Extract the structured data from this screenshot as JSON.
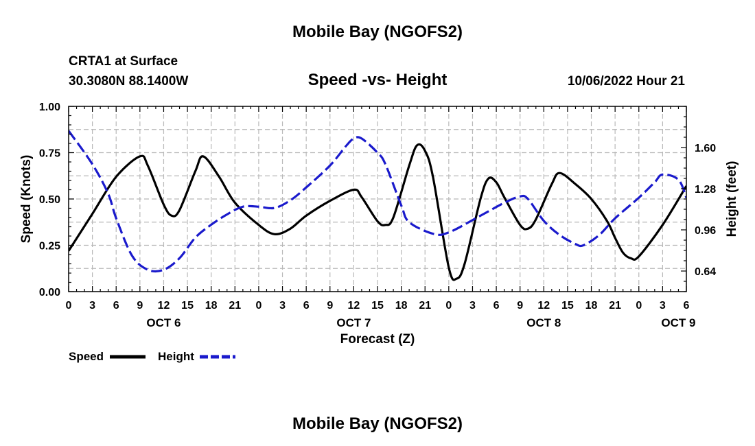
{
  "page": {
    "title_top": "Mobile Bay (NGOFS2)",
    "title_bottom": "Mobile Bay (NGOFS2)",
    "station": "CRTA1 at Surface",
    "coords": "30.3080N  88.1400W",
    "date": "10/06/2022 Hour 21"
  },
  "chart_data": {
    "type": "line",
    "title": "Speed -vs- Height",
    "xlabel": "Forecast (Z)",
    "ylabel": "Speed (Knots)",
    "y2label": "Height (feet)",
    "x_range": [
      0,
      78
    ],
    "ylim": [
      0,
      1
    ],
    "y2lim": [
      0.48,
      1.92
    ],
    "x_ticks": [
      0,
      3,
      6,
      9,
      12,
      15,
      18,
      21,
      24,
      27,
      30,
      33,
      36,
      39,
      42,
      45,
      48,
      51,
      54,
      57,
      60,
      63,
      66,
      69,
      72,
      75,
      78
    ],
    "x_tick_labels": [
      "0",
      "3",
      "6",
      "9",
      "12",
      "15",
      "18",
      "21",
      "0",
      "3",
      "6",
      "9",
      "12",
      "15",
      "18",
      "21",
      "0",
      "3",
      "6",
      "9",
      "12",
      "15",
      "18",
      "21",
      "0",
      "3",
      "6"
    ],
    "day_labels": [
      {
        "x": 12,
        "label": "OCT 6"
      },
      {
        "x": 36,
        "label": "OCT 7"
      },
      {
        "x": 60,
        "label": "OCT 8"
      },
      {
        "x": 77,
        "label": "OCT 9"
      }
    ],
    "y_ticks": [
      0,
      0.25,
      0.5,
      0.75,
      1.0
    ],
    "y_tick_labels": [
      "0.00",
      "0.25",
      "0.50",
      "0.75",
      "1.00"
    ],
    "y2_ticks": [
      0.64,
      0.96,
      1.28,
      1.6
    ],
    "y2_tick_labels": [
      "0.64",
      "0.96",
      "1.28",
      "1.60"
    ],
    "grid": true,
    "series": [
      {
        "name": "Speed",
        "axis": "left",
        "color": "#000000",
        "dash": "solid",
        "points": [
          [
            0,
            0.22
          ],
          [
            3,
            0.42
          ],
          [
            6,
            0.62
          ],
          [
            9,
            0.73
          ],
          [
            10,
            0.68
          ],
          [
            12,
            0.47
          ],
          [
            13,
            0.41
          ],
          [
            14,
            0.44
          ],
          [
            16,
            0.65
          ],
          [
            17,
            0.73
          ],
          [
            19,
            0.62
          ],
          [
            21,
            0.48
          ],
          [
            24,
            0.36
          ],
          [
            26,
            0.31
          ],
          [
            28,
            0.34
          ],
          [
            30,
            0.41
          ],
          [
            33,
            0.49
          ],
          [
            36,
            0.55
          ],
          [
            37,
            0.51
          ],
          [
            39,
            0.38
          ],
          [
            40,
            0.36
          ],
          [
            41,
            0.4
          ],
          [
            43,
            0.68
          ],
          [
            44,
            0.79
          ],
          [
            45,
            0.76
          ],
          [
            46,
            0.62
          ],
          [
            48,
            0.13
          ],
          [
            49,
            0.07
          ],
          [
            50,
            0.15
          ],
          [
            52,
            0.5
          ],
          [
            53,
            0.61
          ],
          [
            54,
            0.59
          ],
          [
            55,
            0.51
          ],
          [
            57,
            0.36
          ],
          [
            58,
            0.34
          ],
          [
            59,
            0.39
          ],
          [
            61,
            0.58
          ],
          [
            62,
            0.64
          ],
          [
            64,
            0.58
          ],
          [
            66,
            0.5
          ],
          [
            68,
            0.38
          ],
          [
            69,
            0.29
          ],
          [
            70,
            0.21
          ],
          [
            71,
            0.18
          ],
          [
            72,
            0.19
          ],
          [
            75,
            0.36
          ],
          [
            78,
            0.57
          ]
        ]
      },
      {
        "name": "Height",
        "axis": "right",
        "color": "#1a1acc",
        "dash": "dashed",
        "points": [
          [
            0,
            1.73
          ],
          [
            3,
            1.47
          ],
          [
            5,
            1.24
          ],
          [
            6,
            1.05
          ],
          [
            8,
            0.76
          ],
          [
            10,
            0.65
          ],
          [
            12,
            0.65
          ],
          [
            14,
            0.74
          ],
          [
            16,
            0.9
          ],
          [
            18,
            1.0
          ],
          [
            20,
            1.08
          ],
          [
            22,
            1.14
          ],
          [
            24,
            1.14
          ],
          [
            26,
            1.13
          ],
          [
            28,
            1.19
          ],
          [
            30,
            1.29
          ],
          [
            33,
            1.46
          ],
          [
            35,
            1.61
          ],
          [
            36,
            1.67
          ],
          [
            37,
            1.67
          ],
          [
            39,
            1.56
          ],
          [
            40,
            1.47
          ],
          [
            42,
            1.15
          ],
          [
            43,
            1.02
          ],
          [
            46,
            0.93
          ],
          [
            48,
            0.94
          ],
          [
            52,
            1.07
          ],
          [
            55,
            1.17
          ],
          [
            57,
            1.22
          ],
          [
            58,
            1.2
          ],
          [
            60,
            1.03
          ],
          [
            62,
            0.92
          ],
          [
            64,
            0.85
          ],
          [
            65,
            0.84
          ],
          [
            67,
            0.92
          ],
          [
            69,
            1.05
          ],
          [
            72,
            1.21
          ],
          [
            74,
            1.33
          ],
          [
            75,
            1.39
          ],
          [
            77,
            1.35
          ],
          [
            78,
            1.21
          ]
        ]
      }
    ],
    "legend": [
      {
        "label": "Speed",
        "color": "#000000",
        "dash": "solid"
      },
      {
        "label": "Height",
        "color": "#1a1acc",
        "dash": "dashed"
      }
    ]
  }
}
